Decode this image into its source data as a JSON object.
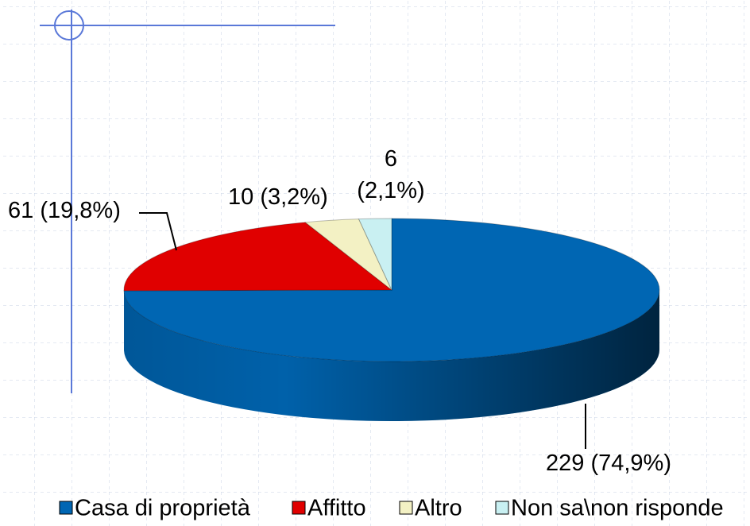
{
  "chart_data": {
    "type": "pie",
    "categories": [
      "Casa di proprietà",
      "Affitto",
      "Altro",
      "Non sa\\non risponde"
    ],
    "values": [
      229,
      61,
      10,
      6
    ],
    "value_labels": [
      "229 (74,9%)",
      "61 (19,8%)",
      "10 (3,2%)",
      "6 (2,1%)"
    ],
    "colors": [
      "#0066b3",
      "#e00000",
      "#f3f1c4",
      "#c9f0f2"
    ],
    "legend": "bottom"
  }
}
